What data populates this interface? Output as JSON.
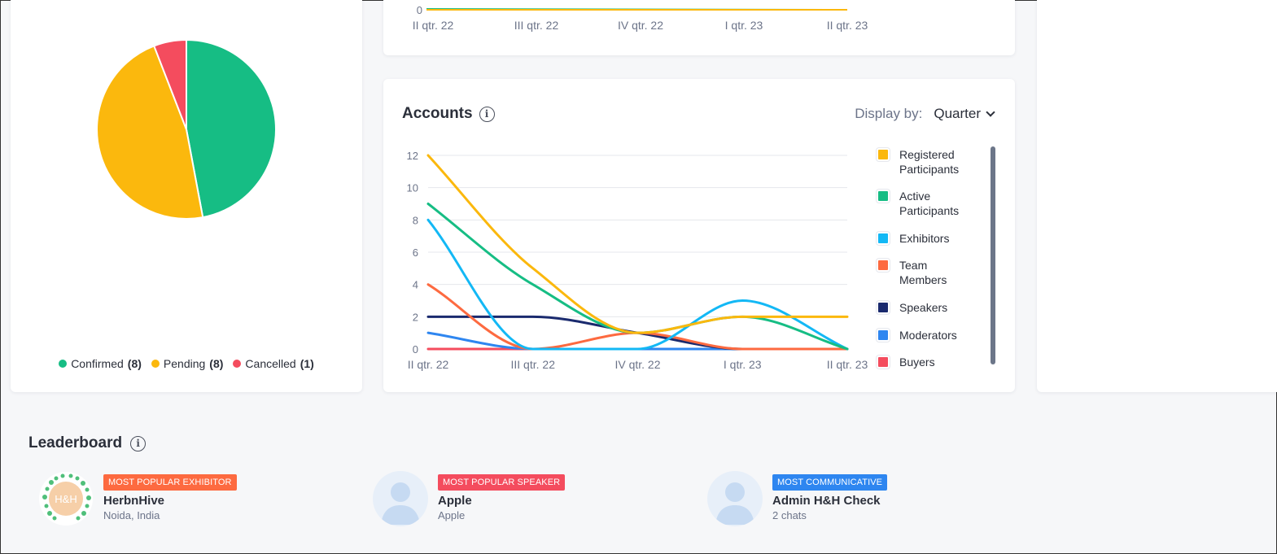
{
  "status_pie": {
    "legend": [
      {
        "label": "Confirmed",
        "count": "(8)",
        "value": 8,
        "color": "#16bd84"
      },
      {
        "label": "Pending",
        "count": "(8)",
        "value": 8,
        "color": "#fbb80d"
      },
      {
        "label": "Cancelled",
        "count": "(1)",
        "value": 1,
        "color": "#f44c5e"
      }
    ]
  },
  "top_chart": {
    "x_labels": [
      "II qtr. 22",
      "III qtr. 22",
      "IV qtr. 22",
      "I qtr. 23",
      "II qtr. 23"
    ],
    "y_tick": "0"
  },
  "accounts": {
    "title": "Accounts",
    "display_by_label": "Display by:",
    "display_by_value": "Quarter"
  },
  "chart_data": {
    "type": "line",
    "x": [
      "II qtr. 22",
      "III qtr. 22",
      "IV qtr. 22",
      "I qtr. 23",
      "II qtr. 23"
    ],
    "ylim": [
      0,
      12
    ],
    "yticks": [
      0,
      2,
      4,
      6,
      8,
      10,
      12
    ],
    "grid": true,
    "legend_position": "right",
    "series": [
      {
        "name": "Registered Participants",
        "color": "#fbb80d",
        "values": [
          12,
          5,
          1,
          2,
          2
        ]
      },
      {
        "name": "Active Participants",
        "color": "#16bd84",
        "values": [
          9,
          4,
          1,
          2,
          0
        ]
      },
      {
        "name": "Exhibitors",
        "color": "#13b8f5",
        "values": [
          8,
          0,
          0,
          3,
          0
        ]
      },
      {
        "name": "Team Members",
        "color": "#fd6a40",
        "values": [
          4,
          0,
          1,
          0,
          0
        ]
      },
      {
        "name": "Speakers",
        "color": "#1a2a6e",
        "values": [
          2,
          2,
          1,
          0,
          0
        ]
      },
      {
        "name": "Moderators",
        "color": "#2e86f0",
        "values": [
          1,
          0,
          0,
          0,
          0
        ]
      },
      {
        "name": "Buyers",
        "color": "#f44c5e",
        "values": [
          0,
          0,
          0,
          0,
          0
        ]
      }
    ]
  },
  "legend_lines": [
    [
      "Registered",
      "Participants"
    ],
    [
      "Active",
      "Participants"
    ],
    [
      "Exhibitors"
    ],
    [
      "Team",
      "Members"
    ],
    [
      "Speakers"
    ],
    [
      "Moderators"
    ],
    [
      "Buyers"
    ]
  ],
  "leaderboard": {
    "title": "Leaderboard",
    "entries": [
      {
        "badge": "Most popular exhibitor",
        "badge_color": "#fd6a40",
        "name": "HerbnHive",
        "sub": "Noida, India",
        "avatar": "herbnhive-logo"
      },
      {
        "badge": "Most popular speaker",
        "badge_color": "#f44c5e",
        "name": "Apple",
        "sub": "Apple",
        "avatar": "user-placeholder"
      },
      {
        "badge": "Most communicative",
        "badge_color": "#2e86f0",
        "name": "Admin H&H Check",
        "sub": "2 chats",
        "avatar": "user-placeholder"
      }
    ],
    "logo_text": "H&H"
  }
}
